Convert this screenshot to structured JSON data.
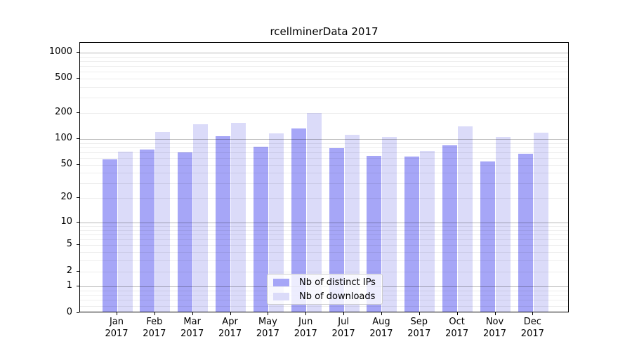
{
  "chart": {
    "title": "rcellminerData 2017"
  },
  "chart_data": {
    "type": "bar",
    "title": "rcellminerData 2017",
    "categories": [
      "Jan",
      "Feb",
      "Mar",
      "Apr",
      "May",
      "Jun",
      "Jul",
      "Aug",
      "Sep",
      "Oct",
      "Nov",
      "Dec"
    ],
    "x_tick_year": "2017",
    "series": [
      {
        "name": "Nb of distinct IPs",
        "color": "#a6a6f7",
        "values": [
          58,
          76,
          70,
          107,
          82,
          132,
          79,
          63,
          62,
          84,
          55,
          67
        ]
      },
      {
        "name": "Nb of downloads",
        "color": "#dbdbf9",
        "values": [
          71,
          120,
          149,
          154,
          116,
          200,
          113,
          105,
          73,
          140,
          106,
          119
        ]
      }
    ],
    "y_scale": "log1p",
    "y_ticks": [
      0,
      1,
      2,
      5,
      10,
      20,
      50,
      100,
      200,
      500,
      1000
    ],
    "ylim": [
      0,
      1300
    ],
    "grid": "on",
    "legend_position": "inside-bottom-center",
    "axis_color": "#000000",
    "major_grid_color": "#b8b8b8",
    "minor_grid_color": "#ededed"
  }
}
